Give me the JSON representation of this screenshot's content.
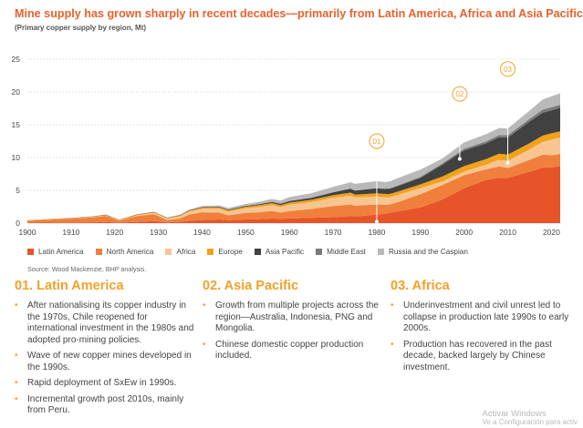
{
  "title": "Mine supply has grown sharply in recent decades—primarily from Latin America, Africa and Asia Pacific",
  "subtitle": "(Primary copper supply by region, Mt)",
  "chart_data": {
    "type": "area",
    "stacked": true,
    "title": "Mine supply has grown sharply in recent decades—primarily from Latin America, Africa and Asia Pacific",
    "subtitle": "(Primary copper supply by region, Mt)",
    "xlabel": "",
    "ylabel": "",
    "xlim": [
      1900,
      2022
    ],
    "ylim": [
      0,
      25
    ],
    "x_ticks": [
      1900,
      1910,
      1920,
      1930,
      1940,
      1950,
      1960,
      1970,
      1980,
      1990,
      2000,
      2010,
      2020
    ],
    "y_ticks": [
      0,
      5,
      10,
      15,
      20,
      25
    ],
    "grid": "horizontal dotted",
    "legend_position": "bottom",
    "x": [
      1900,
      1905,
      1910,
      1915,
      1918,
      1921,
      1925,
      1929,
      1932,
      1935,
      1937,
      1940,
      1944,
      1946,
      1950,
      1953,
      1956,
      1958,
      1960,
      1965,
      1970,
      1974,
      1975,
      1980,
      1982,
      1983,
      1985,
      1990,
      1995,
      2000,
      2005,
      2008,
      2010,
      2015,
      2018,
      2020,
      2022
    ],
    "series": [
      {
        "name": "Latin America",
        "color": "#e8542a",
        "values": [
          0.05,
          0.07,
          0.1,
          0.13,
          0.15,
          0.08,
          0.18,
          0.3,
          0.1,
          0.2,
          0.35,
          0.45,
          0.55,
          0.45,
          0.55,
          0.6,
          0.7,
          0.65,
          0.7,
          0.8,
          0.9,
          1.05,
          1.0,
          1.3,
          1.45,
          1.55,
          1.8,
          2.4,
          3.6,
          5.3,
          6.6,
          6.9,
          6.9,
          7.8,
          8.5,
          8.5,
          8.7
        ]
      },
      {
        "name": "North America",
        "color": "#f07f3c",
        "values": [
          0.3,
          0.45,
          0.55,
          0.75,
          0.95,
          0.3,
          0.9,
          1.05,
          0.35,
          0.5,
          0.95,
          1.2,
          1.05,
          0.75,
          1.0,
          1.05,
          1.15,
          0.95,
          1.15,
          1.35,
          1.7,
          1.8,
          1.65,
          1.55,
          1.35,
          1.3,
          1.45,
          2.0,
          2.2,
          2.0,
          1.6,
          1.75,
          1.5,
          1.85,
          1.95,
          1.85,
          1.85
        ]
      },
      {
        "name": "Africa",
        "color": "#f8c591",
        "values": [
          0.01,
          0.01,
          0.02,
          0.03,
          0.05,
          0.05,
          0.1,
          0.2,
          0.25,
          0.35,
          0.45,
          0.55,
          0.6,
          0.55,
          0.7,
          0.8,
          0.9,
          0.85,
          0.95,
          1.05,
          1.25,
          1.35,
          1.25,
          1.2,
          1.15,
          1.1,
          1.1,
          0.95,
          0.55,
          0.55,
          0.7,
          1.0,
          1.1,
          1.6,
          1.95,
          2.4,
          2.5
        ]
      },
      {
        "name": "Europe",
        "color": "#f2a11b",
        "values": [
          0.05,
          0.06,
          0.07,
          0.08,
          0.09,
          0.06,
          0.09,
          0.1,
          0.08,
          0.1,
          0.12,
          0.15,
          0.2,
          0.2,
          0.25,
          0.28,
          0.3,
          0.3,
          0.32,
          0.35,
          0.4,
          0.45,
          0.45,
          0.5,
          0.5,
          0.5,
          0.5,
          0.55,
          0.75,
          0.85,
          0.85,
          0.95,
          0.95,
          0.95,
          0.95,
          0.95,
          0.95
        ]
      },
      {
        "name": "Asia Pacific",
        "color": "#414141",
        "values": [
          0.02,
          0.02,
          0.03,
          0.04,
          0.05,
          0.04,
          0.05,
          0.06,
          0.05,
          0.06,
          0.07,
          0.08,
          0.1,
          0.1,
          0.12,
          0.15,
          0.18,
          0.2,
          0.25,
          0.3,
          0.45,
          0.6,
          0.6,
          0.75,
          0.75,
          0.8,
          0.85,
          1.0,
          1.8,
          2.4,
          2.4,
          2.5,
          2.6,
          3.3,
          3.5,
          3.5,
          3.6
        ]
      },
      {
        "name": "Middle East",
        "color": "#7a7a7a",
        "values": [
          0,
          0,
          0,
          0,
          0,
          0,
          0,
          0,
          0,
          0,
          0,
          0,
          0,
          0,
          0,
          0,
          0,
          0,
          0,
          0.01,
          0.02,
          0.03,
          0.03,
          0.05,
          0.06,
          0.08,
          0.1,
          0.15,
          0.2,
          0.25,
          0.3,
          0.35,
          0.35,
          0.4,
          0.45,
          0.45,
          0.45
        ]
      },
      {
        "name": "Russia and the Caspian",
        "color": "#b9b9b9",
        "values": [
          0.02,
          0.02,
          0.03,
          0.03,
          0.03,
          0.01,
          0.02,
          0.03,
          0.04,
          0.08,
          0.12,
          0.2,
          0.2,
          0.25,
          0.3,
          0.35,
          0.45,
          0.5,
          0.6,
          0.7,
          0.8,
          0.95,
          1.0,
          1.05,
          1.0,
          1.05,
          1.1,
          1.1,
          0.75,
          0.95,
          1.1,
          1.05,
          1.05,
          1.25,
          1.55,
          1.7,
          1.75
        ]
      }
    ],
    "annotations": [
      {
        "label": "01",
        "x": 1980,
        "y": 0.2,
        "label_y": 12.5
      },
      {
        "label": "02",
        "x": 1999,
        "y": 9.8,
        "label_y": 19.7
      },
      {
        "label": "03",
        "x": 2010,
        "y": 9.2,
        "label_y": 23.5
      }
    ]
  },
  "legend": [
    {
      "label": "Latin America",
      "color": "#e8542a"
    },
    {
      "label": "North America",
      "color": "#f07f3c"
    },
    {
      "label": "Africa",
      "color": "#f8c591"
    },
    {
      "label": "Europe",
      "color": "#f2a11b"
    },
    {
      "label": "Asia Pacific",
      "color": "#414141"
    },
    {
      "label": "Middle East",
      "color": "#7a7a7a"
    },
    {
      "label": "Russia and the Caspian",
      "color": "#b9b9b9"
    }
  ],
  "source": "Source: Wood Mackenzie, BHP analysis.",
  "sections": [
    {
      "heading": "01. Latin America",
      "bullets": [
        "After nationalising its copper industry in the 1970s, Chile reopened for international investment in the 1980s and adopted pro-mining policies.",
        "Wave of new copper mines developed in the 1990s.",
        "Rapid deployment of SxEw in 1990s.",
        "Incremental growth post 2010s, mainly from Peru."
      ]
    },
    {
      "heading": "02. Asia Pacific",
      "bullets": [
        "Growth from multiple projects across the region—Australia, Indonesia, PNG and Mongolia.",
        "Chinese domestic copper production included."
      ]
    },
    {
      "heading": "03. Africa",
      "bullets": [
        "Underinvestment and civil unrest led to collapse in production late 1990s to early 2000s.",
        "Production has recovered in the past decade, backed largely by Chinese investment."
      ]
    }
  ],
  "bullet_glyph": "•",
  "watermark": {
    "line1": "Activar Windows",
    "line2": "Ve a Configuración para activ"
  }
}
